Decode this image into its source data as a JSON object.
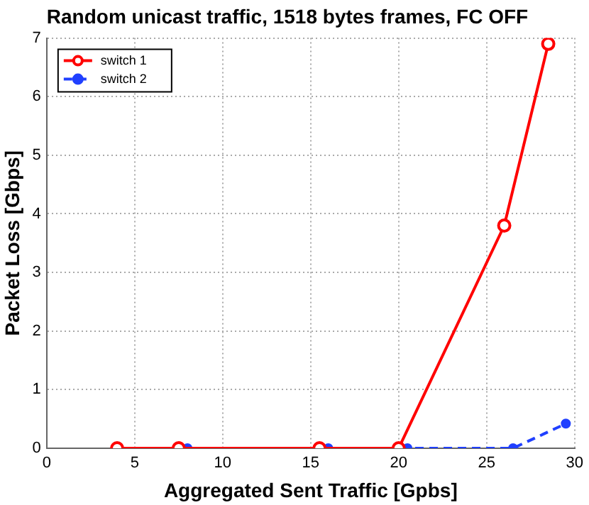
{
  "chart_data": {
    "type": "line",
    "title": "Random unicast traffic, 1518 bytes frames, FC OFF",
    "xlabel": "Aggregated Sent Traffic [Gpbs]",
    "ylabel": "Packet Loss [Gbps]",
    "xlim": [
      0,
      30
    ],
    "xticks": [
      0,
      5,
      10,
      15,
      20,
      25,
      30
    ],
    "ylim": [
      0,
      7
    ],
    "yticks": [
      0,
      1,
      2,
      3,
      4,
      5,
      6,
      7
    ],
    "grid": true,
    "legend": "top left",
    "series": [
      {
        "name": "switch 1",
        "color": "#ff0000",
        "x": [
          4,
          7.5,
          15.5,
          20,
          26,
          28.5
        ],
        "values": [
          0,
          0,
          0,
          0,
          3.8,
          6.9
        ],
        "marker": "circle",
        "line_style": "solid"
      },
      {
        "name": "switch 2",
        "color": "#2040ff",
        "x": [
          4,
          8,
          16,
          20.5,
          26.5,
          29.5
        ],
        "values": [
          0,
          0,
          0,
          0,
          0,
          0.42
        ],
        "marker": "circle",
        "line_style": "dashed"
      }
    ]
  }
}
